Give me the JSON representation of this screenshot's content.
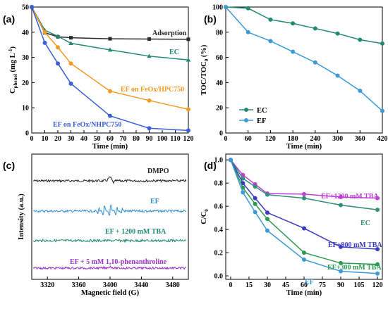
{
  "chart_data": [
    {
      "panel": "(a)",
      "type": "line",
      "xlabel": "Time (min)",
      "ylabel": "C_phenol (mg L^-1)",
      "ylabel_main": "C",
      "ylabel_sub": "phenol",
      "ylabel_rest": " (mg L",
      "ylabel_sup": "-1",
      "ylabel_end": ")",
      "xlim": [
        0,
        120
      ],
      "ylim": [
        0,
        50
      ],
      "xticks": [
        0,
        10,
        20,
        30,
        40,
        50,
        60,
        70,
        80,
        90,
        100,
        110,
        120
      ],
      "xtick_labels": [
        "0",
        "10",
        "20",
        "30",
        "40",
        "50",
        "60",
        "70",
        "80",
        "90",
        "100",
        "110",
        "120"
      ],
      "yticks": [
        0,
        10,
        20,
        30,
        40,
        50
      ],
      "ytick_labels": [
        "0",
        "10",
        "20",
        "30",
        "40",
        "50"
      ],
      "series": [
        {
          "name": "Adsorption",
          "color": "#2b2b2b",
          "marker": "square",
          "x": [
            0,
            10,
            20,
            30,
            60,
            90,
            120
          ],
          "y": [
            50,
            39.8,
            38.2,
            37.8,
            37.4,
            37.3,
            37.2
          ]
        },
        {
          "name": "EC",
          "color": "#1f8a70",
          "marker": "triangle",
          "x": [
            0,
            10,
            20,
            30,
            60,
            90,
            120
          ],
          "y": [
            50,
            40.8,
            38.4,
            35.6,
            33,
            30.5,
            29
          ]
        },
        {
          "name": "EF on FeOx/HPC750",
          "color": "#f59a23",
          "marker": "circle",
          "x": [
            0,
            10,
            20,
            30,
            60,
            90,
            120
          ],
          "y": [
            50,
            40,
            34,
            27.6,
            16.6,
            12.9,
            9.4
          ]
        },
        {
          "name": "EF on FeOx/NHPC750",
          "color": "#3a5fd9",
          "marker": "circle",
          "x": [
            0,
            10,
            20,
            30,
            60,
            90,
            120
          ],
          "y": [
            50,
            35.8,
            27.6,
            19.6,
            6.8,
            1.9,
            1
          ]
        }
      ]
    },
    {
      "panel": "(b)",
      "type": "line",
      "xlabel": "Time (min)",
      "ylabel": "TOC/TOC0 (%)",
      "ylabel_main": "TOC/TOC",
      "ylabel_sub": "0",
      "ylabel_end": " (%)",
      "xlim": [
        0,
        420
      ],
      "ylim": [
        0,
        100
      ],
      "xticks": [
        0,
        60,
        120,
        180,
        240,
        300,
        360,
        420
      ],
      "xtick_labels": [
        "0",
        "60",
        "120",
        "180",
        "240",
        "300",
        "360",
        "420"
      ],
      "yticks": [
        0,
        20,
        40,
        60,
        80,
        100
      ],
      "ytick_labels": [
        "0",
        "20",
        "40",
        "60",
        "80",
        "100"
      ],
      "legend": "bottom-left",
      "series": [
        {
          "name": "EC",
          "color": "#1f8a70",
          "marker": "circle",
          "x": [
            0,
            60,
            120,
            180,
            240,
            300,
            360,
            420
          ],
          "y": [
            100,
            99,
            90,
            87,
            83,
            79,
            74,
            71
          ]
        },
        {
          "name": "EF",
          "color": "#3a9ad9",
          "marker": "circle",
          "x": [
            0,
            60,
            120,
            180,
            240,
            300,
            360,
            420
          ],
          "y": [
            100,
            80,
            73,
            64.5,
            56,
            45.5,
            33.5,
            17.5
          ]
        }
      ]
    },
    {
      "panel": "(c)",
      "type": "line",
      "xlabel": "Magnetic field (G)",
      "ylabel": "Intensity (a.u.)",
      "xlim": [
        3300,
        3500
      ],
      "xticks": [
        3320,
        3360,
        3400,
        3440,
        3480
      ],
      "xtick_labels": [
        "3320",
        "3360",
        "3400",
        "3440",
        "3480"
      ],
      "spectra": [
        {
          "name": "DMPO",
          "color": "#222222",
          "offset": 3.3
        },
        {
          "name": "EF",
          "color": "#2f8fd6",
          "offset": 2.2
        },
        {
          "name": "EF + 1200 mM TBA",
          "color": "#1f8a70",
          "offset": 1.15
        },
        {
          "name": "EF + 5 mM 1,10-phenanthroline",
          "color": "#9b30c8",
          "offset": 0.3
        }
      ]
    },
    {
      "panel": "(d)",
      "type": "line",
      "xlabel": "Time (min)",
      "ylabel": "C/C0",
      "ylabel_main": "C/C",
      "ylabel_sub": "0",
      "xlim": [
        0,
        120
      ],
      "ylim": [
        0,
        1.0
      ],
      "xticks": [
        0,
        15,
        30,
        45,
        60,
        75,
        90,
        105,
        120
      ],
      "xtick_labels": [
        "0",
        "15",
        "30",
        "45",
        "60",
        "75",
        "90",
        "105",
        "120"
      ],
      "yticks": [
        0,
        0.2,
        0.4,
        0.6,
        0.8,
        1.0
      ],
      "ytick_labels": [
        "0.0",
        "0.2",
        "0.4",
        "0.6",
        "0.8",
        "1.0"
      ],
      "series": [
        {
          "name": "EF+1200 mM TBA",
          "color": "#c03fd6",
          "marker": "circle",
          "x": [
            0,
            10,
            20,
            30,
            60,
            90,
            120
          ],
          "y": [
            1.0,
            0.87,
            0.79,
            0.71,
            0.705,
            0.68,
            0.67
          ]
        },
        {
          "name": "EC",
          "color": "#2f8f77",
          "marker": "circle",
          "x": [
            0,
            10,
            20,
            30,
            60,
            90,
            120
          ],
          "y": [
            1.0,
            0.84,
            0.77,
            0.7,
            0.67,
            0.61,
            0.57
          ]
        },
        {
          "name": "EF+900 mM TBA",
          "color": "#3b3bbf",
          "marker": "circle",
          "x": [
            0,
            10,
            20,
            30,
            60,
            90,
            120
          ],
          "y": [
            1.0,
            0.8,
            0.67,
            0.545,
            0.41,
            0.25,
            0.23
          ]
        },
        {
          "name": "EF+300 mM TBA",
          "color": "#2e9a4f",
          "marker": "circle",
          "x": [
            0,
            10,
            20,
            30,
            60,
            90,
            120
          ],
          "y": [
            1.0,
            0.76,
            0.62,
            0.49,
            0.2,
            0.11,
            0.1
          ]
        },
        {
          "name": "EF",
          "color": "#3a9ad9",
          "marker": "circle",
          "x": [
            0,
            10,
            20,
            30,
            60,
            90,
            120
          ],
          "y": [
            1.0,
            0.72,
            0.55,
            0.39,
            0.14,
            0.04,
            0.02
          ]
        }
      ]
    }
  ]
}
